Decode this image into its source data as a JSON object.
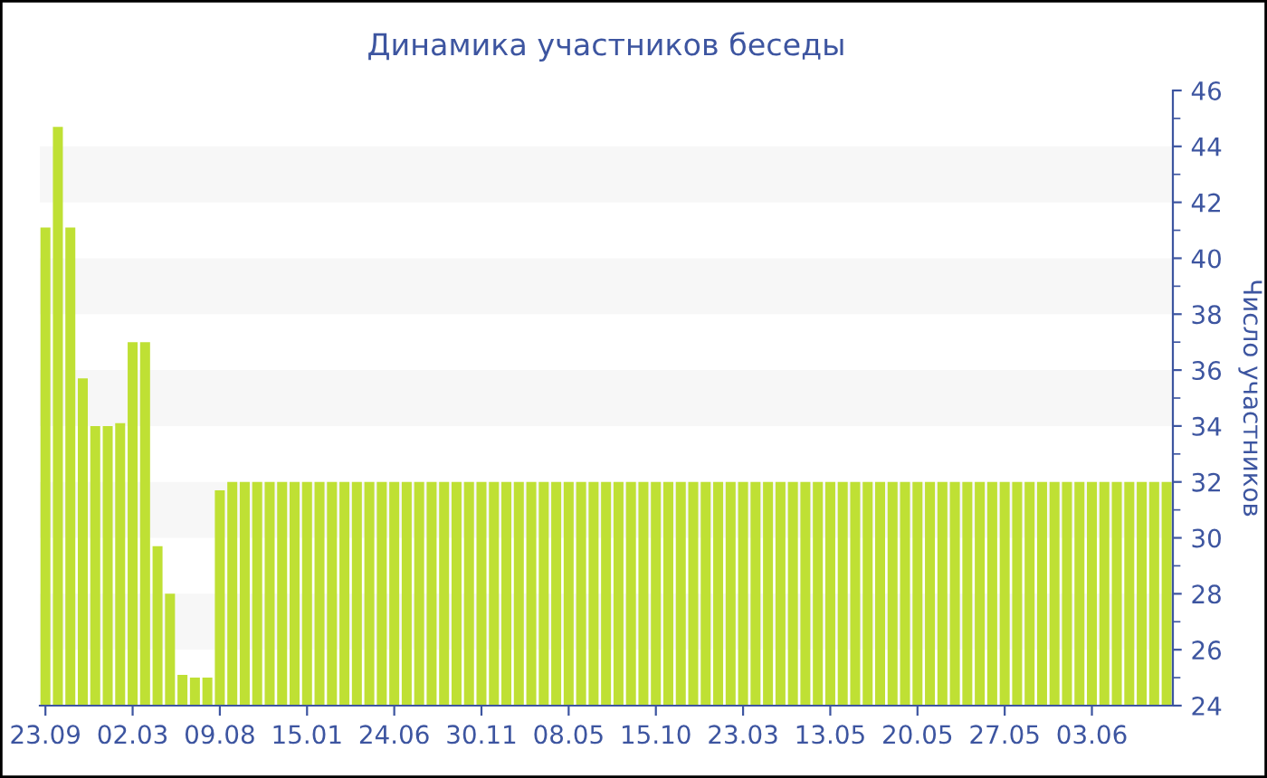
{
  "chart_data": {
    "type": "bar",
    "title": "Динамика участников беседы",
    "ylabel": "Число участников",
    "categories": [
      "23.09",
      null,
      null,
      null,
      null,
      null,
      null,
      "02.03",
      null,
      null,
      null,
      null,
      null,
      null,
      "09.08",
      null,
      null,
      null,
      null,
      null,
      null,
      "15.01",
      null,
      null,
      null,
      null,
      null,
      null,
      "24.06",
      null,
      null,
      null,
      null,
      null,
      null,
      "30.11",
      null,
      null,
      null,
      null,
      null,
      null,
      "08.05",
      null,
      null,
      null,
      null,
      null,
      null,
      "15.10",
      null,
      null,
      null,
      null,
      null,
      null,
      "23.03",
      null,
      null,
      null,
      null,
      null,
      null,
      "13.05",
      null,
      null,
      null,
      null,
      null,
      null,
      "20.05",
      null,
      null,
      null,
      null,
      null,
      null,
      "27.05",
      null,
      null,
      null,
      null,
      null,
      null,
      "03.06",
      null,
      null,
      null,
      null,
      null,
      null
    ],
    "values": [
      41.1,
      44.7,
      41.1,
      35.7,
      34,
      34,
      34.1,
      37,
      37,
      29.7,
      28,
      25.1,
      25,
      25,
      31.7,
      32,
      32,
      32,
      32,
      32,
      32,
      32,
      32,
      32,
      32,
      32,
      32,
      32,
      32,
      32,
      32,
      32,
      32,
      32,
      32,
      32,
      32,
      32,
      32,
      32,
      32,
      32,
      32,
      32,
      32,
      32,
      32,
      32,
      32,
      32,
      32,
      32,
      32,
      32,
      32,
      32,
      32,
      32,
      32,
      32,
      32,
      32,
      32,
      32,
      32,
      32,
      32,
      32,
      32,
      32,
      32,
      32,
      32,
      32,
      32,
      32,
      32,
      32,
      32,
      32,
      32,
      32,
      32,
      32,
      32,
      32,
      32,
      32,
      32,
      32,
      32
    ],
    "color": "#bfe034",
    "ylim": [
      24,
      46
    ],
    "yticks": [
      24,
      26,
      28,
      30,
      32,
      34,
      36,
      38,
      40,
      42,
      44,
      46
    ],
    "bands": [
      {
        "axis": "y",
        "from": 26,
        "to": 28,
        "color": "#f7f7f7"
      },
      {
        "axis": "y",
        "from": 30,
        "to": 32,
        "color": "#f7f7f7"
      },
      {
        "axis": "y",
        "from": 34,
        "to": 36,
        "color": "#f7f7f7"
      },
      {
        "axis": "y",
        "from": 38,
        "to": 40,
        "color": "#f7f7f7"
      },
      {
        "axis": "y",
        "from": 42,
        "to": 44,
        "color": "#f7f7f7"
      }
    ],
    "grid": false,
    "legend": false
  }
}
